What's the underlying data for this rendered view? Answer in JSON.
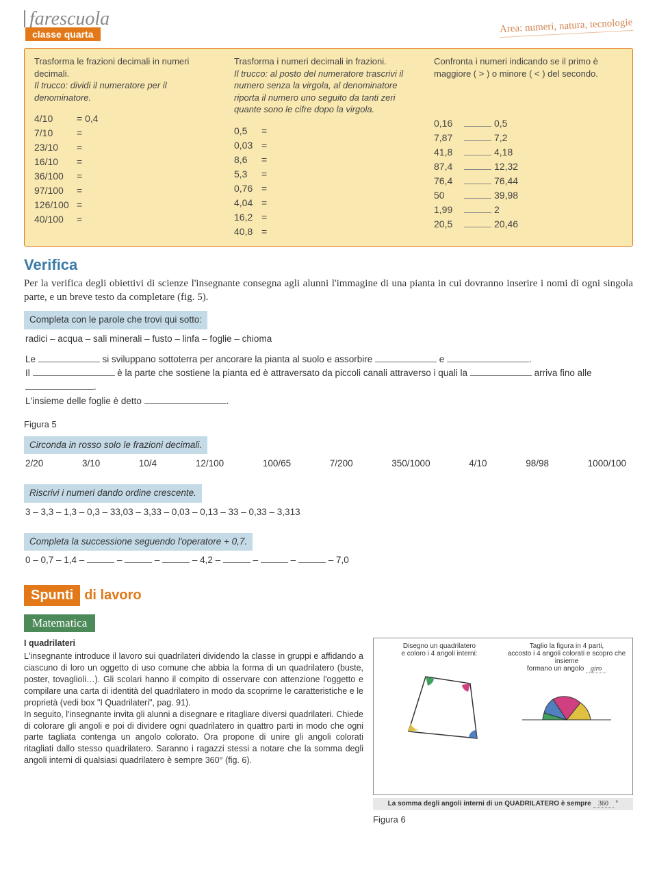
{
  "header": {
    "brand": "farescuola",
    "subtitle": "classe quarta",
    "area": "Area: numeri, natura, tecnologie"
  },
  "exBox1": {
    "col1": {
      "title": "Trasforma le frazioni decimali in numeri decimali.",
      "hint": "Il trucco: dividi il numeratore per il denominatore.",
      "rows": [
        {
          "a": "4/10",
          "b": "= 0,4"
        },
        {
          "a": "7/10",
          "b": "="
        },
        {
          "a": "23/10",
          "b": "="
        },
        {
          "a": "16/10",
          "b": "="
        },
        {
          "a": "36/100",
          "b": "="
        },
        {
          "a": "97/100",
          "b": "="
        },
        {
          "a": "126/100",
          "b": "="
        },
        {
          "a": "40/100",
          "b": "="
        }
      ]
    },
    "col2": {
      "title": "Trasforma i numeri decimali in frazioni.",
      "hint": "Il trucco: al posto del numeratore trascrivi il numero senza la virgola, al denominatore riporta il numero uno seguito da tanti zeri quante sono le cifre dopo la virgola.",
      "rows": [
        {
          "a": "0,5",
          "b": "="
        },
        {
          "a": "0,03",
          "b": "="
        },
        {
          "a": "8,6",
          "b": "="
        },
        {
          "a": "5,3",
          "b": "="
        },
        {
          "a": "0,76",
          "b": "="
        },
        {
          "a": "4,04",
          "b": "="
        },
        {
          "a": "16,2",
          "b": "="
        },
        {
          "a": "40,8",
          "b": "="
        }
      ]
    },
    "col3": {
      "title": "Confronta i numeri indicando se il primo è maggiore ( > ) o minore ( < ) del secondo.",
      "rows": [
        {
          "a": "0,16",
          "b": "0,5"
        },
        {
          "a": "7,87",
          "b": "7,2"
        },
        {
          "a": "41,8",
          "b": "4,18"
        },
        {
          "a": "87,4",
          "b": "12,32"
        },
        {
          "a": "76,4",
          "b": "76,44"
        },
        {
          "a": "50",
          "b": "39,98"
        },
        {
          "a": "1,99",
          "b": "2"
        },
        {
          "a": "20,5",
          "b": "20,46"
        }
      ]
    }
  },
  "verifica": {
    "heading": "Verifica",
    "body": "Per la verifica degli obiettivi di scienze l'insegnante consegna agli alunni l'immagine di una pianta in cui dovranno inserire i nomi di ogni singola parte, e un breve testo da completare (fig. 5)."
  },
  "completa": {
    "title": "Completa con le parole che trovi qui sotto:",
    "words": "radici – acqua – sali minerali – fusto – linfa – foglie – chioma",
    "l1a": "Le ",
    "l1b": " si sviluppano sottoterra per ancorare la pianta al suolo e assorbire ",
    "l1c": " e ",
    "l1d": ".",
    "l2a": "Il ",
    "l2b": " è la parte che sostiene la pianta ed è attraversato da piccoli canali attraverso i quali la ",
    "l2c": " arriva fino alle ",
    "l2d": ".",
    "l3a": "L'insieme delle foglie è detto ",
    "l3b": "."
  },
  "figura5": "Figura 5",
  "circonda": {
    "title": "Circonda in rosso solo le frazioni decimali.",
    "items": [
      "2/20",
      "3/10",
      "10/4",
      "12/100",
      "100/65",
      "7/200",
      "350/1000",
      "4/10",
      "98/98",
      "1000/100"
    ]
  },
  "riscrivi": {
    "title": "Riscrivi i numeri dando ordine crescente.",
    "text": "3 – 3,3 – 1,3 – 0,3 – 33,03 – 3,33 – 0,03 – 0,13 – 33 – 0,33 – 3,313"
  },
  "successione": {
    "title": "Completa la successione seguendo l'operatore + 0,7.",
    "parts": [
      "0 – 0,7 – 1,4 – ",
      " – ",
      " – ",
      " – 4,2 – ",
      " – ",
      " – ",
      " – 7,0"
    ]
  },
  "spunti": {
    "left": "Spunti",
    "right": "di lavoro"
  },
  "matematica": {
    "label": "Matematica",
    "title": "I quadrilateri",
    "body": "L'insegnante introduce il lavoro sui quadrilateri dividendo la classe in gruppi e affidando a ciascuno di loro un oggetto di uso comune che abbia la forma di un quadrilatero (buste, poster, tovaglioli…). Gli scolari hanno il compito di osservare con attenzione l'oggetto e compilare una carta di identità del quadrilatero in modo da scoprirne le caratteristiche e le proprietà (vedi box \"I Quadrilateri\", pag. 91).\nIn seguito, l'insegnante invita gli alunni a disegnare e ritagliare diversi quadrilateri. Chiede di colorare gli angoli e poi di dividere ogni quadrilatero in quattro parti in modo che ogni parte tagliata contenga un angolo colorato. Ora propone di unire gli angoli colorati ritagliati dallo stesso quadrilatero. Saranno i ragazzi stessi a notare che la somma degli angoli interni di qualsiasi quadrilatero è sempre 360° (fig. 6).",
    "fig6": "Figura 6",
    "figLeft": "Disegno un quadrilatero\ne coloro i 4 angoli interni:",
    "figRightA": "Taglio la figura in 4 parti,\naccosto i 4 angoli colorati e scopro che insieme\nformano un angolo ",
    "figRightB": "giro",
    "figCaption": "La somma degli angoli interni di un QUADRILATERO è sempre ",
    "figCaptionVal": "360",
    "figCaptionEnd": " °"
  }
}
